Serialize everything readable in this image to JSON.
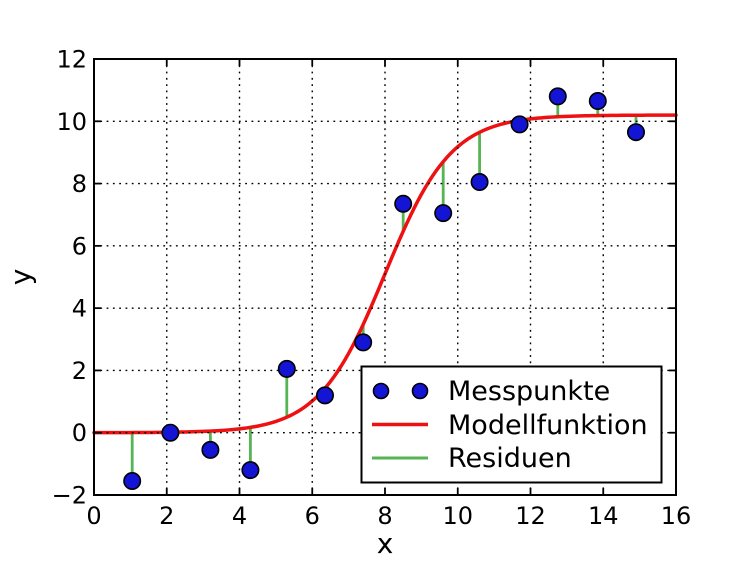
{
  "chart_data": {
    "type": "scatter",
    "title": "",
    "xlabel": "x",
    "ylabel": "y",
    "xlim": [
      0,
      16
    ],
    "ylim": [
      -2,
      12
    ],
    "xticks": {
      "values": [
        0,
        2,
        4,
        6,
        8,
        10,
        12,
        14,
        16
      ],
      "labels": [
        "0",
        "2",
        "4",
        "6",
        "8",
        "10",
        "12",
        "14",
        "16"
      ]
    },
    "yticks": {
      "values": [
        -2,
        0,
        2,
        4,
        6,
        8,
        10,
        12
      ],
      "labels": [
        "−2",
        "0",
        "2",
        "4",
        "6",
        "8",
        "10",
        "12"
      ]
    },
    "grid": {
      "visible": true,
      "style": "dotted",
      "color": "#000000"
    },
    "axis_color": "#000000",
    "series": [
      {
        "name": "Messpunkte",
        "type": "scatter",
        "color": "#1414d4",
        "edge_color": "#000000",
        "points": [
          [
            1.05,
            -1.55
          ],
          [
            2.1,
            0.0
          ],
          [
            3.2,
            -0.55
          ],
          [
            4.3,
            -1.2
          ],
          [
            5.3,
            2.05
          ],
          [
            6.35,
            1.2
          ],
          [
            7.4,
            2.9
          ],
          [
            8.5,
            7.35
          ],
          [
            9.6,
            7.05
          ],
          [
            10.6,
            8.05
          ],
          [
            11.7,
            9.9
          ],
          [
            12.75,
            10.8
          ],
          [
            13.85,
            10.65
          ],
          [
            14.9,
            9.65
          ]
        ]
      },
      {
        "name": "Modellfunktion",
        "type": "line",
        "color": "#ee1111",
        "model": {
          "form": "logistic",
          "A": 10.2,
          "x0": 8.0,
          "k": 1.1
        }
      },
      {
        "name": "Residuen",
        "type": "residual-segments",
        "color": "#55b555"
      }
    ],
    "legend": {
      "position": "lower right",
      "entries": [
        {
          "label": "Messpunkte"
        },
        {
          "label": "Modellfunktion"
        },
        {
          "label": "Residuen"
        }
      ]
    }
  }
}
